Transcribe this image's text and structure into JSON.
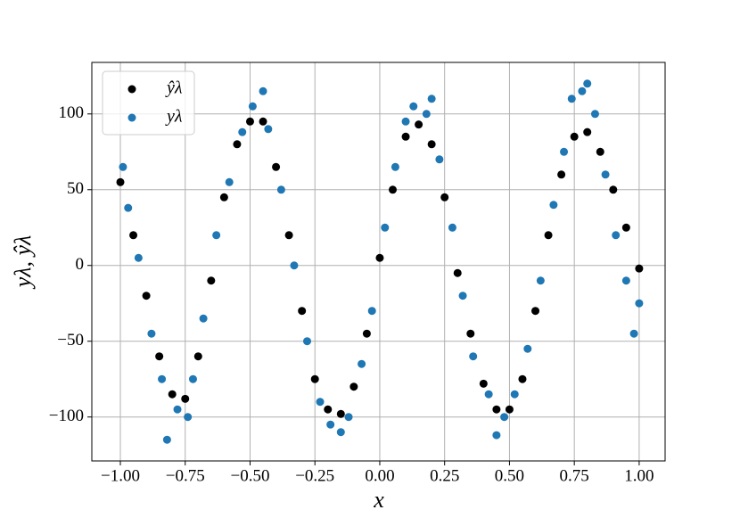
{
  "chart_data": {
    "type": "scatter",
    "xlabel": "x",
    "ylabel": "yλ, ŷλ",
    "xlim": [
      -1.11,
      1.1
    ],
    "ylim": [
      -129,
      134
    ],
    "xticks": [
      {
        "value": -1,
        "label": "−1.00"
      },
      {
        "value": -0.75,
        "label": "−0.75"
      },
      {
        "value": -0.5,
        "label": "−0.50"
      },
      {
        "value": -0.25,
        "label": "−0.25"
      },
      {
        "value": 0,
        "label": "0.00"
      },
      {
        "value": 0.25,
        "label": "0.25"
      },
      {
        "value": 0.5,
        "label": "0.50"
      },
      {
        "value": 0.75,
        "label": "0.75"
      },
      {
        "value": 1,
        "label": "1.00"
      }
    ],
    "yticks": [
      {
        "value": -100,
        "label": "−100"
      },
      {
        "value": -50,
        "label": "−50"
      },
      0,
      50,
      100
    ],
    "grid": true,
    "legend": "upper left",
    "series": [
      {
        "name": "ŷλ",
        "color": "#000000",
        "x": [
          -1.0,
          -0.95,
          -0.9,
          -0.85,
          -0.8,
          -0.75,
          -0.7,
          -0.65,
          -0.6,
          -0.55,
          -0.5,
          -0.45,
          -0.4,
          -0.35,
          -0.3,
          -0.25,
          -0.2,
          -0.15,
          -0.1,
          -0.05,
          0.0,
          0.05,
          0.1,
          0.15,
          0.2,
          0.25,
          0.3,
          0.35,
          0.4,
          0.45,
          0.5,
          0.55,
          0.6,
          0.65,
          0.7,
          0.75,
          0.8,
          0.85,
          0.9,
          0.95,
          1.0
        ],
        "y": [
          55,
          20,
          -20,
          -60,
          -85,
          -88,
          -60,
          -10,
          45,
          80,
          95,
          95,
          65,
          20,
          -30,
          -75,
          -95,
          -98,
          -80,
          -45,
          5,
          50,
          85,
          93,
          80,
          45,
          -5,
          -45,
          -78,
          -95,
          -95,
          -75,
          -30,
          20,
          60,
          85,
          88,
          75,
          50,
          25,
          -2
        ]
      },
      {
        "name": "yλ",
        "color": "#1f77b4",
        "x": [
          -0.99,
          -0.97,
          -0.93,
          -0.88,
          -0.84,
          -0.82,
          -0.78,
          -0.74,
          -0.72,
          -0.68,
          -0.63,
          -0.58,
          -0.53,
          -0.49,
          -0.45,
          -0.43,
          -0.38,
          -0.33,
          -0.28,
          -0.23,
          -0.19,
          -0.15,
          -0.12,
          -0.07,
          -0.03,
          0.02,
          0.06,
          0.1,
          0.13,
          0.18,
          0.2,
          0.23,
          0.28,
          0.32,
          0.36,
          0.42,
          0.45,
          0.48,
          0.52,
          0.57,
          0.62,
          0.67,
          0.71,
          0.74,
          0.78,
          0.8,
          0.83,
          0.87,
          0.91,
          0.95,
          0.98,
          1.0
        ],
        "y": [
          65,
          38,
          5,
          -45,
          -75,
          -115,
          -95,
          -100,
          -75,
          -35,
          20,
          55,
          88,
          105,
          115,
          90,
          50,
          0,
          -50,
          -90,
          -105,
          -110,
          -100,
          -65,
          -30,
          25,
          65,
          95,
          105,
          100,
          110,
          70,
          25,
          -20,
          -60,
          -85,
          -112,
          -100,
          -85,
          -55,
          -10,
          40,
          75,
          110,
          115,
          120,
          100,
          60,
          20,
          -10,
          -45,
          -25
        ]
      }
    ]
  }
}
